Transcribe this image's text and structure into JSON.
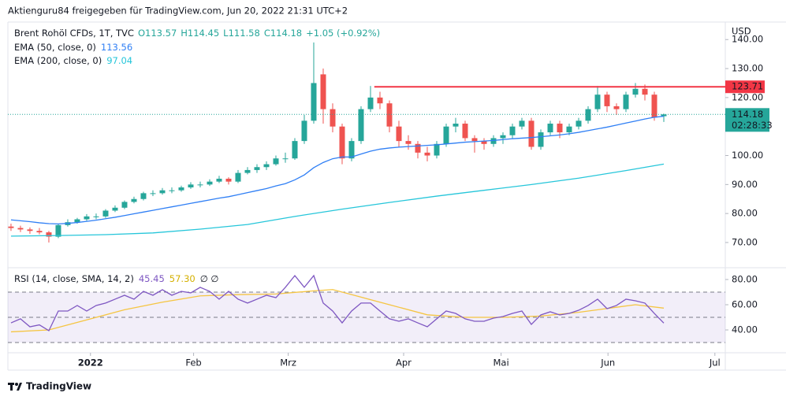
{
  "header": "Aktienguru84 freigegeben für TradingView.com, Jun 20, 2022 21:31 UTC+2",
  "footer": "TradingView",
  "chart_data": {
    "type": "candlestick",
    "legend": {
      "symbol": "Brent Rohöl CFDs, 1T, TVC",
      "open": "O113.57",
      "high": "H114.45",
      "low": "L111.58",
      "close": "C114.18",
      "change": "+1.05 (+0.92%)"
    },
    "currency": "USD",
    "up_color": "#26a69a",
    "down_color": "#ef5350",
    "ohlc": [
      [
        75.5,
        76.5,
        74,
        75
      ],
      [
        75,
        75.8,
        73.6,
        74.5
      ],
      [
        74.5,
        75.2,
        73,
        74
      ],
      [
        74,
        75,
        72.8,
        73.5
      ],
      [
        73.5,
        74,
        70,
        72
      ],
      [
        72,
        76.5,
        71.5,
        76
      ],
      [
        76,
        78,
        75.5,
        77
      ],
      [
        77,
        78.5,
        76.5,
        78
      ],
      [
        78,
        79.8,
        77.5,
        79
      ],
      [
        79,
        80,
        78,
        79
      ],
      [
        79,
        81.5,
        78.5,
        81
      ],
      [
        81,
        82.8,
        80.5,
        82
      ],
      [
        82,
        84.5,
        81.5,
        84
      ],
      [
        84,
        85.8,
        83.5,
        85
      ],
      [
        85,
        87.5,
        84.5,
        87
      ],
      [
        87,
        88,
        86,
        87
      ],
      [
        87,
        88.8,
        86.5,
        88
      ],
      [
        88,
        89,
        87,
        88
      ],
      [
        88,
        89.6,
        87.5,
        89
      ],
      [
        89,
        90.8,
        88.5,
        90
      ],
      [
        90,
        91,
        89,
        90
      ],
      [
        90,
        91.8,
        89.5,
        91
      ],
      [
        91,
        93,
        90.5,
        92
      ],
      [
        92,
        92.5,
        90,
        91
      ],
      [
        91,
        95,
        90.5,
        94
      ],
      [
        94,
        96,
        93.5,
        95
      ],
      [
        95,
        97,
        94,
        96
      ],
      [
        96,
        98,
        95,
        97
      ],
      [
        97,
        100,
        96.5,
        99
      ],
      [
        99,
        101,
        97.5,
        99
      ],
      [
        99,
        106,
        98.5,
        105
      ],
      [
        105,
        114,
        104,
        112
      ],
      [
        112,
        139,
        111,
        125
      ],
      [
        128,
        130,
        111,
        116
      ],
      [
        116,
        118,
        108,
        110
      ],
      [
        110,
        111,
        97,
        99
      ],
      [
        99,
        106,
        98,
        105
      ],
      [
        105,
        117,
        104,
        116
      ],
      [
        116,
        124,
        115,
        120
      ],
      [
        120,
        122,
        116,
        118
      ],
      [
        118,
        119,
        108,
        110
      ],
      [
        110,
        112,
        103,
        105
      ],
      [
        105,
        107,
        102,
        104
      ],
      [
        104,
        105,
        99,
        101
      ],
      [
        101,
        103,
        98,
        100
      ],
      [
        100,
        105,
        99,
        104
      ],
      [
        104,
        111,
        103,
        110
      ],
      [
        110,
        113,
        108,
        111
      ],
      [
        111,
        112,
        105,
        106
      ],
      [
        106,
        107,
        101,
        105
      ],
      [
        105,
        106,
        102,
        104
      ],
      [
        104,
        107,
        103,
        106
      ],
      [
        106,
        108,
        104,
        107
      ],
      [
        107,
        111,
        106,
        110
      ],
      [
        110,
        113,
        109,
        112
      ],
      [
        112,
        113,
        102,
        103
      ],
      [
        103,
        109,
        102,
        108
      ],
      [
        108,
        112,
        107,
        111
      ],
      [
        111,
        112,
        106,
        108
      ],
      [
        108,
        111,
        107,
        110
      ],
      [
        110,
        113,
        109,
        112
      ],
      [
        112,
        117,
        111,
        116
      ],
      [
        116,
        124,
        115,
        121
      ],
      [
        121,
        122,
        115,
        117
      ],
      [
        117,
        118,
        114,
        116
      ],
      [
        116,
        122,
        115,
        121
      ],
      [
        121,
        125,
        120,
        123
      ],
      [
        123,
        124.5,
        119,
        121
      ],
      [
        121,
        122,
        112,
        113.13
      ],
      [
        113.57,
        114.45,
        111.58,
        114.18
      ]
    ],
    "series": [
      {
        "name": "EMA (50, close, 0)",
        "value_label": "113.56",
        "color": "#2f7ff5",
        "values": [
          77.8,
          77.5,
          77.2,
          76.8,
          76.5,
          76.4,
          76.6,
          76.9,
          77.3,
          77.7,
          78.2,
          78.7,
          79.3,
          79.9,
          80.5,
          81.1,
          81.7,
          82.3,
          82.9,
          83.5,
          84.1,
          84.7,
          85.3,
          85.8,
          86.5,
          87.2,
          87.9,
          88.6,
          89.5,
          90.3,
          91.6,
          93.3,
          95.8,
          97.6,
          98.9,
          99.5,
          99.5,
          100.5,
          101.5,
          102.2,
          102.6,
          102.9,
          103.1,
          103.3,
          103.5,
          103.7,
          104.0,
          104.3,
          104.6,
          104.8,
          105.0,
          105.2,
          105.5,
          105.8,
          106.0,
          106.2,
          106.5,
          106.8,
          107.1,
          107.5,
          108.0,
          108.6,
          109.2,
          109.8,
          110.5,
          111.2,
          111.9,
          112.6,
          113.2,
          113.56
        ]
      },
      {
        "name": "EMA (200, close, 0)",
        "value_label": "97.04",
        "color": "#26c6da",
        "x": [
          0,
          5,
          10,
          15,
          20,
          25,
          30,
          35,
          40,
          45,
          50,
          55,
          60,
          65,
          69
        ],
        "values": [
          72.2,
          72.4,
          72.7,
          73.3,
          74.6,
          76.2,
          79,
          81.5,
          83.8,
          86,
          88,
          90,
          92.2,
          94.8,
          97.04
        ]
      }
    ],
    "xlim": [
      -0.33,
      75.5
    ],
    "xticks": [
      {
        "value": 8.4,
        "label": "2022"
      },
      {
        "value": 19.3,
        "label": "Feb"
      },
      {
        "value": 29.3,
        "label": "Mrz"
      },
      {
        "value": 41.5,
        "label": "Apr"
      },
      {
        "value": 51.8,
        "label": "Mai"
      },
      {
        "value": 63.1,
        "label": "Jun"
      },
      {
        "value": 74.4,
        "label": "Jul"
      }
    ],
    "ylim": [
      61.3,
      145.5
    ],
    "yticks": [
      {
        "value": 70,
        "label": "70.00"
      },
      {
        "value": 80,
        "label": "80.00"
      },
      {
        "value": 90,
        "label": "90.00"
      },
      {
        "value": 100,
        "label": "100.00"
      },
      {
        "value": 110,
        "label": "110.00"
      },
      {
        "value": 120,
        "label": "120.00"
      },
      {
        "value": 130,
        "label": "130.00"
      },
      {
        "value": 140,
        "label": "140.00"
      }
    ],
    "hline": {
      "value": 123.71,
      "label": "123.71",
      "start": 38.4,
      "color": "#f23645"
    },
    "last": {
      "value": 114.18,
      "label": "114.18",
      "countdown": "02:28:33"
    },
    "rsi": {
      "name": "RSI (14, close, SMA, 14, 2)",
      "color": "#7e57c2",
      "value_label": "45.45",
      "values": [
        45.6,
        48.8,
        42.5,
        44,
        39.4,
        55,
        55,
        59.4,
        55,
        59.4,
        61.3,
        64.4,
        67.5,
        64.4,
        70.6,
        67.5,
        71.9,
        67.5,
        70.6,
        69.4,
        73.8,
        70.6,
        64.4,
        70.6,
        64.4,
        61.3,
        64.4,
        67.5,
        65.6,
        73.8,
        83.1,
        73.8,
        83.1,
        61.3,
        55,
        45.6,
        55,
        61.3,
        61.3,
        55,
        48.8,
        46.9,
        48.8,
        45.6,
        42.5,
        48.8,
        55,
        53.1,
        48.8,
        46.9,
        46.9,
        49.4,
        50.6,
        53.1,
        55,
        44.4,
        51.9,
        54.4,
        51.9,
        53.1,
        55.6,
        59.4,
        64.4,
        56.9,
        59.4,
        64.4,
        63.1,
        61.3,
        53.1,
        45.45
      ],
      "sma": {
        "color": "#f5c542",
        "value_label": "57.30",
        "x": [
          0,
          4,
          8,
          12,
          16,
          20,
          24,
          28,
          32,
          34,
          36,
          40,
          44,
          48,
          52,
          56,
          60,
          64,
          66,
          69
        ],
        "values": [
          38.5,
          40,
          48,
          56,
          62,
          67,
          68,
          68.5,
          71,
          72,
          68,
          60,
          52,
          50,
          50,
          51,
          54,
          58,
          60,
          57.3
        ]
      },
      "extra": "∅ ∅",
      "ylim": [
        21.9,
        88.1
      ],
      "yticks": [
        {
          "value": 40,
          "label": "40.00"
        },
        {
          "value": 60,
          "label": "60.00"
        },
        {
          "value": 80,
          "label": "80.00"
        }
      ],
      "bands": [
        30,
        50,
        70
      ],
      "band_fill": "#7e57c2"
    }
  }
}
